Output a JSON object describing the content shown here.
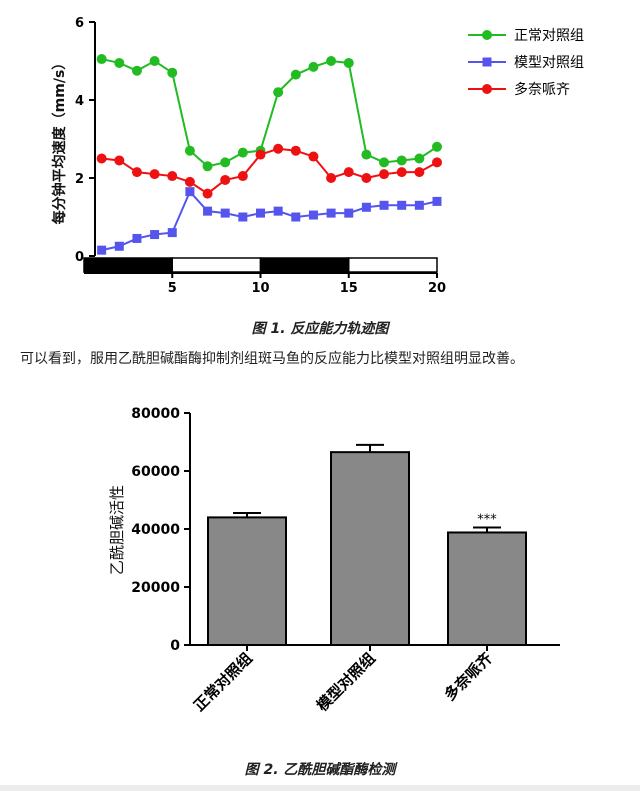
{
  "figure1": {
    "caption": "图 1. 反应能力轨迹图",
    "chart_data": {
      "type": "line",
      "ylabel": "每分钟平均速度（mm/s）",
      "ylim": [
        0,
        6
      ],
      "yticks": [
        "0",
        "2",
        "4",
        "6"
      ],
      "xlim": [
        0,
        20
      ],
      "xticks": [
        "5",
        "10",
        "15",
        "20"
      ],
      "x": [
        1,
        2,
        3,
        4,
        5,
        6,
        7,
        8,
        9,
        10,
        11,
        12,
        13,
        14,
        15,
        16,
        17,
        18,
        19,
        20
      ],
      "light_dark_bar": [
        "dark",
        "light",
        "dark",
        "light"
      ],
      "legend_position": "top-right",
      "series": [
        {
          "name": "正常对照组",
          "color": "#22bb22",
          "marker": "circle",
          "values": [
            5.05,
            4.95,
            4.75,
            5.0,
            4.7,
            2.7,
            2.3,
            2.4,
            2.65,
            2.7,
            4.2,
            4.65,
            4.85,
            5.0,
            4.95,
            2.6,
            2.4,
            2.45,
            2.5,
            2.8
          ]
        },
        {
          "name": "模型对照组",
          "color": "#5555ee",
          "marker": "square",
          "values": [
            0.15,
            0.25,
            0.45,
            0.55,
            0.6,
            1.65,
            1.15,
            1.1,
            1.0,
            1.1,
            1.15,
            1.0,
            1.05,
            1.1,
            1.1,
            1.25,
            1.3,
            1.3,
            1.3,
            1.4
          ]
        },
        {
          "name": "多奈哌齐",
          "color": "#ee1111",
          "marker": "circle",
          "values": [
            2.5,
            2.45,
            2.15,
            2.1,
            2.05,
            1.9,
            1.6,
            1.95,
            2.05,
            2.6,
            2.75,
            2.7,
            2.55,
            2.0,
            2.15,
            2.0,
            2.1,
            2.15,
            2.15,
            2.4
          ]
        }
      ]
    }
  },
  "paragraph": "可以看到，服用乙酰胆碱酯酶抑制剂组斑马鱼的反应能力比模型对照组明显改善。",
  "figure2": {
    "caption": "图 2. 乙酰胆碱酯酶检测",
    "chart_data": {
      "type": "bar",
      "ylabel": "乙酰胆碱活性",
      "ylim": [
        0,
        80000
      ],
      "yticks": [
        "0",
        "20000",
        "40000",
        "60000",
        "80000"
      ],
      "categories": [
        "正常对照组",
        "模型对照组",
        "多奈哌齐"
      ],
      "values": [
        44000,
        66500,
        38800
      ],
      "errors": [
        1500,
        2500,
        1700
      ],
      "annotations": [
        "",
        "",
        "***"
      ],
      "bar_color": "#888888"
    }
  }
}
